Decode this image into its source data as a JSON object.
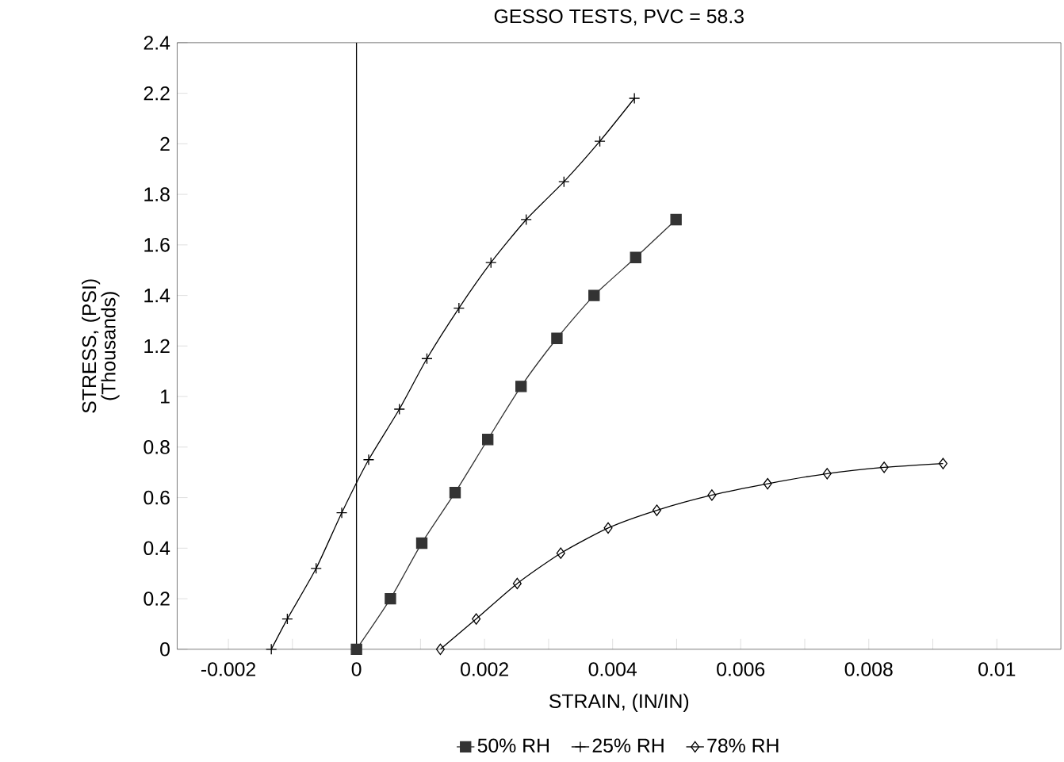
{
  "chart_data": {
    "type": "line",
    "title": "GESSO TESTS, PVC = 58.3",
    "xlabel": "STRAIN, (IN/IN)",
    "ylabel": "STRESS, (PSI) (Thousands)",
    "xlim": [
      -0.0028,
      0.011
    ],
    "ylim": [
      0,
      2.4
    ],
    "xticks": [
      -0.002,
      {
        "value": -0.001,
        "label": null
      },
      0,
      {
        "value": 0.001,
        "label": null
      },
      0.002,
      {
        "value": 0.003,
        "label": null
      },
      0.004,
      {
        "value": 0.005,
        "label": null
      },
      0.006,
      {
        "value": 0.007,
        "label": null
      },
      0.008,
      {
        "value": 0.009,
        "label": null
      },
      0.01
    ],
    "yticks": [
      0,
      0.2,
      0.4,
      0.6,
      0.8,
      1,
      1.2,
      1.4,
      1.6,
      1.8,
      2,
      2.2,
      2.4
    ],
    "legend": "bottom",
    "grid": false,
    "line_style": "solid",
    "ref_lines": [
      {
        "axis": "x",
        "value": 0,
        "color": "#000000"
      }
    ],
    "series": [
      {
        "name": "50% RH",
        "color": "#333333",
        "marker": "square",
        "x": [
          0,
          0.00053,
          0.00102,
          0.00154,
          0.00205,
          0.00257,
          0.00313,
          0.00371,
          0.00436,
          0.00499
        ],
        "values": [
          0,
          0.2,
          0.42,
          0.62,
          0.83,
          1.04,
          1.23,
          1.4,
          1.55,
          1.7
        ]
      },
      {
        "name": "25% RH",
        "color": "#000000",
        "marker": "cross",
        "x": [
          -0.00133,
          -0.00108,
          -0.00063,
          -0.00023,
          0.00019,
          0.00067,
          0.0011,
          0.0016,
          0.0021,
          0.00265,
          0.00324,
          0.0038,
          0.00434
        ],
        "values": [
          0,
          0.12,
          0.32,
          0.54,
          0.75,
          0.95,
          1.15,
          1.35,
          1.53,
          1.7,
          1.85,
          2.01,
          2.18
        ]
      },
      {
        "name": "78% RH",
        "color": "#000000",
        "marker": "diamond",
        "x": [
          0.00131,
          0.00187,
          0.00251,
          0.00319,
          0.00393,
          0.00469,
          0.00555,
          0.00642,
          0.00735,
          0.00824,
          0.00916
        ],
        "values": [
          0,
          0.12,
          0.26,
          0.38,
          0.48,
          0.55,
          0.61,
          0.655,
          0.695,
          0.72,
          0.735
        ]
      }
    ]
  }
}
